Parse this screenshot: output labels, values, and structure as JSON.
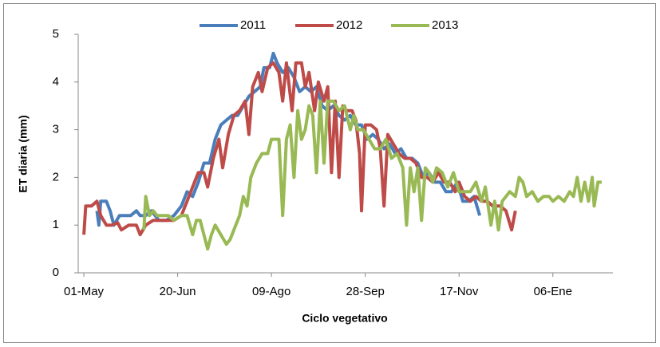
{
  "chart_data": {
    "type": "line",
    "y_label": "ET diaria (mm)",
    "x_label": "Ciclo vegetativo",
    "xlim": [
      -3,
      282
    ],
    "ylim": [
      0,
      5
    ],
    "xticks": [
      {
        "value": 0,
        "label": "01-May"
      },
      {
        "value": 50,
        "label": "20-Jun"
      },
      {
        "value": 100,
        "label": "09-Ago"
      },
      {
        "value": 150,
        "label": "28-Sep"
      },
      {
        "value": 200,
        "label": "17-Nov"
      },
      {
        "value": 250,
        "label": "06-Ene"
      }
    ],
    "yticks": [
      0,
      1,
      2,
      3,
      4,
      5
    ],
    "legend": "top",
    "series": [
      {
        "name": "2011",
        "color": "#4a7ebb",
        "x": [
          7,
          8,
          9,
          12,
          14,
          16,
          19,
          22,
          25,
          28,
          30,
          33,
          36,
          40,
          44,
          48,
          52,
          55,
          58,
          61,
          64,
          67,
          70,
          73,
          76,
          79,
          82,
          85,
          88,
          91,
          94,
          96,
          99,
          101,
          103,
          106,
          109,
          112,
          115,
          118,
          121,
          124,
          127,
          130,
          133,
          136,
          139,
          142,
          145,
          148,
          151,
          154,
          157,
          160,
          163,
          166,
          169,
          172,
          175,
          178,
          181,
          184,
          187,
          190,
          193,
          196,
          199,
          202,
          205,
          208,
          211
        ],
        "values": [
          1.3,
          1.0,
          1.5,
          1.5,
          1.3,
          1.0,
          1.2,
          1.2,
          1.2,
          1.3,
          1.2,
          1.2,
          1.3,
          1.1,
          1.1,
          1.2,
          1.4,
          1.7,
          1.6,
          1.9,
          2.3,
          2.3,
          2.8,
          3.1,
          3.2,
          3.3,
          3.3,
          3.5,
          3.7,
          3.8,
          3.9,
          4.3,
          4.3,
          4.6,
          4.4,
          4.2,
          4.3,
          4.1,
          3.8,
          3.9,
          3.8,
          3.9,
          3.5,
          3.4,
          3.5,
          3.3,
          3.2,
          3.3,
          3.1,
          3.1,
          2.8,
          2.9,
          2.8,
          2.6,
          2.7,
          2.5,
          2.6,
          2.4,
          2.4,
          2.3,
          2.0,
          2.1,
          1.9,
          1.9,
          1.7,
          1.7,
          1.9,
          1.5,
          1.5,
          1.6,
          1.2
        ]
      },
      {
        "name": "2012",
        "color": "#be4b48",
        "x": [
          0,
          1,
          4,
          7,
          9,
          12,
          15,
          18,
          20,
          24,
          28,
          30,
          33,
          37,
          41,
          45,
          48,
          52,
          55,
          58,
          61,
          64,
          66,
          69,
          72,
          74,
          77,
          80,
          83,
          86,
          88,
          90,
          93,
          95,
          98,
          101,
          104,
          106,
          108,
          111,
          113,
          116,
          118,
          120,
          123,
          125,
          128,
          130,
          132,
          134,
          136,
          138,
          140,
          143,
          145,
          147,
          148,
          150,
          153,
          156,
          158,
          160,
          162,
          165,
          168,
          171,
          174,
          177,
          180,
          183,
          186,
          189,
          192,
          195,
          198,
          200,
          203,
          206,
          209,
          212,
          215,
          218,
          222,
          225,
          228,
          230
        ],
        "values": [
          0.8,
          1.4,
          1.4,
          1.5,
          1.2,
          1.0,
          1.0,
          1.05,
          0.9,
          1.0,
          1.0,
          0.8,
          1.0,
          1.1,
          1.1,
          1.1,
          1.1,
          1.2,
          1.5,
          1.8,
          2.1,
          2.1,
          1.8,
          2.4,
          2.8,
          2.2,
          2.9,
          3.3,
          3.4,
          3.6,
          2.9,
          3.9,
          4.2,
          3.8,
          4.3,
          4.4,
          4.2,
          3.6,
          4.4,
          3.4,
          4.4,
          4.4,
          3.9,
          4.2,
          3.4,
          4.0,
          3.6,
          3.9,
          2.1,
          3.6,
          2.0,
          3.5,
          3.4,
          3.4,
          3.2,
          2.5,
          1.3,
          3.1,
          3.1,
          3.0,
          2.6,
          1.4,
          2.9,
          2.7,
          2.5,
          2.4,
          2.4,
          2.3,
          2.0,
          2.0,
          1.9,
          2.1,
          1.9,
          1.9,
          1.7,
          1.9,
          1.6,
          1.5,
          1.6,
          1.5,
          1.5,
          1.4,
          1.4,
          1.3,
          0.9,
          1.3
        ]
      },
      {
        "name": "2013",
        "color": "#98b954",
        "x": [
          32,
          33,
          35,
          37,
          39,
          42,
          45,
          48,
          52,
          55,
          58,
          60,
          62,
          64,
          66,
          68,
          70,
          73,
          76,
          78,
          80,
          83,
          85,
          87,
          89,
          92,
          95,
          98,
          100,
          104,
          106,
          108,
          110,
          112,
          114,
          116,
          118,
          120,
          122,
          124,
          126,
          128,
          130,
          133,
          136,
          139,
          142,
          144,
          146,
          149,
          152,
          155,
          158,
          161,
          164,
          167,
          170,
          172,
          174,
          176,
          178,
          180,
          182,
          184,
          186,
          188,
          191,
          194,
          197,
          200,
          203,
          206,
          209,
          212,
          214,
          217,
          219,
          221,
          223,
          225,
          227,
          230,
          232,
          234,
          236,
          239,
          242,
          245,
          248,
          250,
          253,
          256,
          259,
          261,
          263,
          265,
          267,
          269,
          271,
          272,
          274,
          276
        ],
        "values": [
          0.9,
          1.6,
          1.2,
          1.3,
          1.2,
          1.2,
          1.2,
          1.1,
          1.2,
          1.2,
          0.8,
          1.1,
          1.1,
          0.8,
          0.5,
          0.8,
          1.0,
          0.8,
          0.6,
          0.7,
          0.9,
          1.2,
          1.6,
          1.4,
          2.0,
          2.3,
          2.5,
          2.5,
          2.8,
          2.8,
          1.2,
          2.8,
          3.1,
          2.0,
          3.4,
          2.8,
          3.0,
          3.5,
          3.3,
          2.1,
          3.6,
          2.3,
          3.6,
          3.6,
          3.4,
          3.5,
          3.0,
          3.3,
          3.0,
          3.0,
          2.8,
          2.6,
          2.6,
          2.8,
          2.4,
          2.5,
          2.2,
          1.0,
          2.2,
          1.7,
          2.2,
          1.1,
          2.2,
          2.1,
          1.9,
          2.2,
          2.1,
          1.8,
          2.1,
          1.7,
          1.7,
          1.7,
          1.9,
          1.5,
          1.8,
          1.0,
          1.5,
          0.9,
          1.5,
          1.6,
          1.7,
          1.6,
          2.0,
          1.9,
          1.6,
          1.7,
          1.5,
          1.6,
          1.6,
          1.5,
          1.6,
          1.5,
          1.7,
          1.6,
          2.0,
          1.5,
          1.9,
          1.5,
          2.0,
          1.4,
          1.9,
          1.9
        ]
      }
    ]
  }
}
